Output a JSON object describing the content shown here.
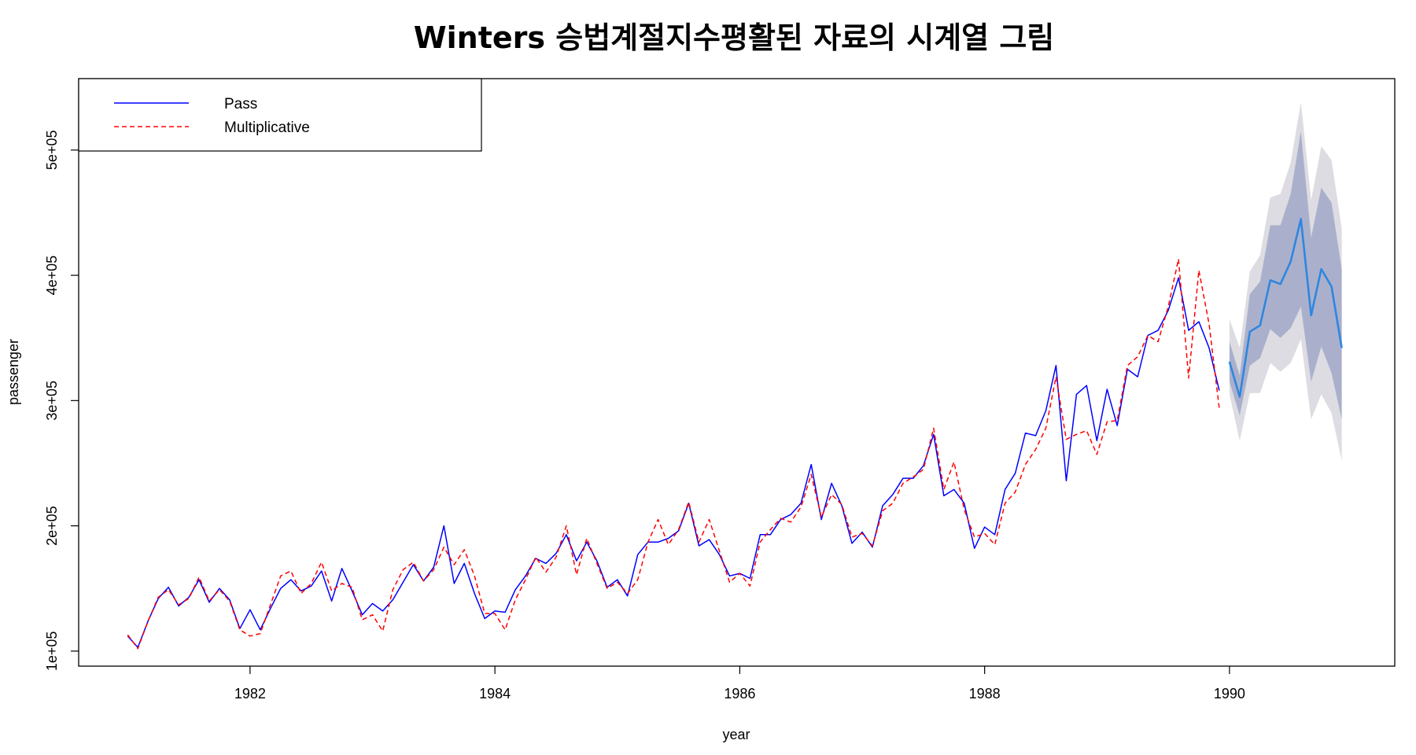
{
  "chart_data": {
    "type": "line",
    "title": "Winters 승법계절지수평활된 자료의 시계열 그림",
    "xlabel": "year",
    "ylabel": "passenger",
    "x_ticks": [
      1982,
      1984,
      1986,
      1988,
      1990
    ],
    "x_tick_labels": [
      "1982",
      "1984",
      "1986",
      "1988",
      "1990"
    ],
    "y_ticks": [
      100000,
      200000,
      300000,
      400000,
      500000
    ],
    "y_tick_labels": [
      "1e+05",
      "2e+05",
      "3e+05",
      "4e+05",
      "5e+05"
    ],
    "xlim": [
      1980.6,
      1991.35
    ],
    "ylim": [
      88000,
      557000
    ],
    "grid": false,
    "legend_position": "top-left",
    "start": 1981.0,
    "frequency": 12,
    "series": [
      {
        "name": "Pass",
        "color": "#0000ff",
        "style": "solid",
        "values": [
          112000,
          103000,
          124000,
          142000,
          151000,
          136000,
          143000,
          157000,
          139000,
          150000,
          141000,
          118000,
          133000,
          117000,
          134000,
          150000,
          157000,
          148000,
          152000,
          164000,
          140000,
          166000,
          148000,
          129000,
          138000,
          132000,
          141000,
          155000,
          169000,
          156000,
          167000,
          200000,
          154000,
          170000,
          146000,
          126000,
          132000,
          131000,
          149000,
          160000,
          174000,
          170000,
          178000,
          193000,
          172000,
          187000,
          172000,
          151000,
          157000,
          144000,
          177000,
          187000,
          187000,
          190000,
          196000,
          218000,
          184000,
          189000,
          177000,
          160000,
          162000,
          158000,
          193000,
          193000,
          205000,
          209000,
          218000,
          249000,
          205000,
          234000,
          216000,
          186000,
          195000,
          183000,
          216000,
          225000,
          238000,
          238000,
          248000,
          273000,
          224000,
          229000,
          218000,
          182000,
          199000,
          193000,
          229000,
          242000,
          274000,
          272000,
          292000,
          328000,
          236000,
          305000,
          312000,
          268000,
          309000,
          280000,
          325000,
          319000,
          352000,
          356000,
          372000,
          398000,
          356000,
          363000,
          342000,
          308000
        ]
      },
      {
        "name": "Multiplicative",
        "color": "#ff0000",
        "style": "dashed",
        "values": [
          113000,
          102000,
          124000,
          143000,
          149000,
          137000,
          142000,
          159000,
          140000,
          149000,
          140000,
          117000,
          112000,
          114000,
          137000,
          160000,
          164000,
          146000,
          154000,
          171000,
          148000,
          154000,
          151000,
          125000,
          129000,
          116000,
          149000,
          165000,
          171000,
          156000,
          165000,
          183000,
          169000,
          181000,
          160000,
          130000,
          130000,
          117000,
          141000,
          157000,
          175000,
          163000,
          175000,
          200000,
          161000,
          190000,
          170000,
          150000,
          155000,
          146000,
          157000,
          187000,
          205000,
          185000,
          197000,
          219000,
          187000,
          205000,
          180000,
          155000,
          162000,
          152000,
          187000,
          197000,
          206000,
          203000,
          215000,
          241000,
          207000,
          225000,
          217000,
          191000,
          194000,
          184000,
          212000,
          218000,
          234000,
          239000,
          245000,
          278000,
          229000,
          251000,
          213000,
          191000,
          194000,
          185000,
          218000,
          227000,
          249000,
          261000,
          278000,
          319000,
          269000,
          273000,
          276000,
          257000,
          283000,
          284000,
          328000,
          335000,
          352000,
          347000,
          375000,
          413000,
          318000,
          404000,
          361000,
          294000
        ]
      }
    ],
    "forecast": {
      "start": 1990.0,
      "frequency": 12,
      "color": "#2e86de",
      "inner_band_color": "#aab0cc",
      "outer_band_color": "#dcdce2",
      "mean": [
        331000,
        303000,
        355000,
        360000,
        396000,
        393000,
        411000,
        445000,
        368000,
        405000,
        391000,
        342000
      ],
      "lower80": [
        315000,
        288000,
        328000,
        334000,
        357000,
        350000,
        358000,
        375000,
        315000,
        343000,
        322000,
        285000
      ],
      "upper80": [
        347000,
        320000,
        385000,
        395000,
        440000,
        440000,
        465000,
        515000,
        430000,
        470000,
        458000,
        405000
      ],
      "lower95": [
        305000,
        268000,
        306000,
        306000,
        330000,
        323000,
        330000,
        349000,
        285000,
        305000,
        290000,
        252000
      ],
      "upper95": [
        365000,
        342000,
        403000,
        416000,
        462000,
        465000,
        490000,
        538000,
        460000,
        503000,
        492000,
        437000
      ]
    }
  }
}
